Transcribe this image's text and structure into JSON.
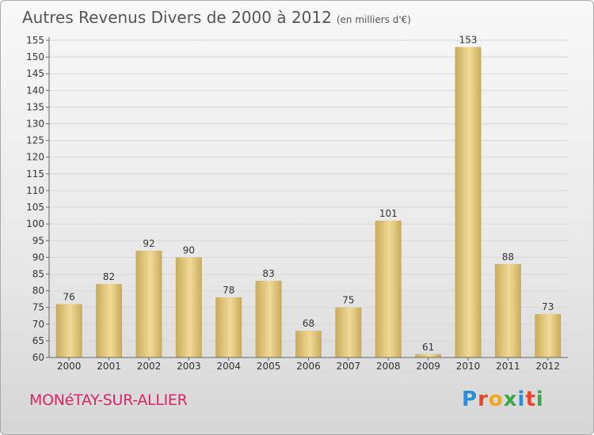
{
  "title": "Autres Revenus Divers de 2000 à 2012",
  "unit": "(en milliers d'€)",
  "commune": "MONéTAY-SUR-ALLIER",
  "brand": {
    "letters": [
      "P",
      "r",
      "o",
      "x",
      "i",
      "t",
      "i"
    ],
    "colors": [
      "#2a8fd6",
      "#e8472b",
      "#f2a81d",
      "#3aa84a",
      "#2a8fd6",
      "#e8472b",
      "#3aa84a"
    ]
  },
  "colors": {
    "bar_light": "#f1da96",
    "bar_dark": "#c9aa5c",
    "axis": "#666666",
    "grid": "#d8d8d8",
    "title": "#555555",
    "commune": "#d9266a"
  },
  "chart_data": {
    "type": "bar",
    "categories": [
      "2000",
      "2001",
      "2002",
      "2003",
      "2004",
      "2005",
      "2006",
      "2007",
      "2008",
      "2009",
      "2010",
      "2011",
      "2012"
    ],
    "values": [
      76,
      82,
      92,
      90,
      78,
      83,
      68,
      75,
      101,
      61,
      153,
      88,
      73
    ],
    "ylim": [
      60,
      155
    ],
    "yticks": [
      60,
      65,
      70,
      75,
      80,
      85,
      90,
      95,
      100,
      105,
      110,
      115,
      120,
      125,
      130,
      135,
      140,
      145,
      150,
      155
    ],
    "grid": "horizontal, light",
    "data_labels": true
  }
}
